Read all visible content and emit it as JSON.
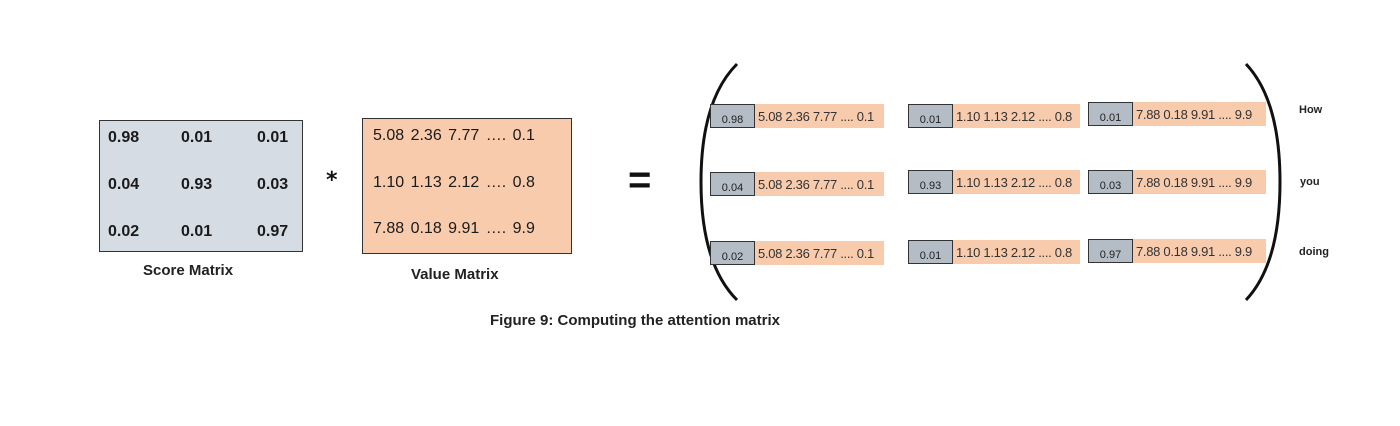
{
  "score_matrix": {
    "label": "Score Matrix",
    "rows": [
      [
        "0.98",
        "0.01",
        "0.01"
      ],
      [
        "0.04",
        "0.93",
        "0.03"
      ],
      [
        "0.02",
        "0.01",
        "0.97"
      ]
    ]
  },
  "operator_multiply": "*",
  "value_matrix": {
    "label": "Value Matrix",
    "rows": [
      "5.08  2.36  7.77  ….  0.1",
      "1.10  1.13  2.12  ….  0.8",
      "7.88  0.18  9.91  ….  9.9"
    ]
  },
  "operator_equals": "=",
  "result_matrix": {
    "rows": [
      {
        "word": "How",
        "cells": [
          {
            "score": "0.98",
            "vector": "5.08 2.36 7.77 .... 0.1"
          },
          {
            "score": "0.01",
            "vector": "1.10 1.13 2.12 .... 0.8"
          },
          {
            "score": "0.01",
            "vector": "7.88 0.18 9.91 .... 9.9"
          }
        ]
      },
      {
        "word": "you",
        "cells": [
          {
            "score": "0.04",
            "vector": "5.08 2.36 7.77 .... 0.1"
          },
          {
            "score": "0.93",
            "vector": "1.10 1.13 2.12 .... 0.8"
          },
          {
            "score": "0.03",
            "vector": "7.88 0.18 9.91 .... 9.9"
          }
        ]
      },
      {
        "word": "doing",
        "cells": [
          {
            "score": "0.02",
            "vector": "5.08 2.36 7.77 .... 0.1"
          },
          {
            "score": "0.01",
            "vector": "1.10 1.13 2.12 .... 0.8"
          },
          {
            "score": "0.97",
            "vector": "7.88 0.18 9.91 .... 9.9"
          }
        ]
      }
    ]
  },
  "figure_caption": "Figure 9: Computing the attention matrix",
  "colors": {
    "score_fill": "#d6dce4",
    "value_fill": "#f8cbad",
    "result_score_fill": "#b4bcc6"
  }
}
